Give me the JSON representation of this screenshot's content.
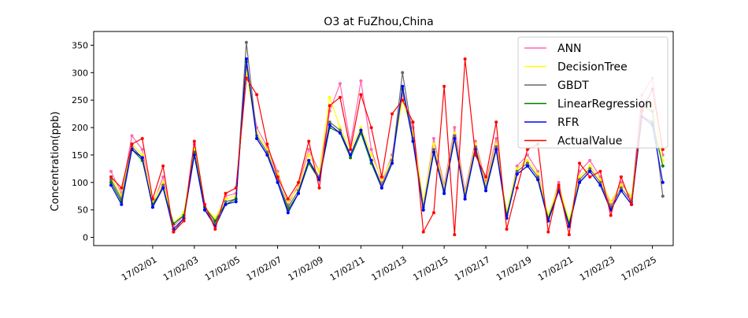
{
  "chart_data": {
    "type": "line",
    "title": "O3 at FuZhou,China",
    "xlabel": "",
    "ylabel": "Concentration(ppb)",
    "x_unit": "days",
    "xlim": [
      "2017-01-29T04:00",
      "2017-02-26T00:00"
    ],
    "ylim": [
      -15,
      375
    ],
    "yticks": [
      0,
      50,
      100,
      150,
      200,
      250,
      300,
      350
    ],
    "xticks": [
      "17/02/01",
      "17/02/03",
      "17/02/05",
      "17/02/07",
      "17/02/09",
      "17/02/11",
      "17/02/13",
      "17/02/15",
      "17/02/17",
      "17/02/19",
      "17/02/21",
      "17/02/23",
      "17/02/25"
    ],
    "legend_position": "top-right",
    "grid": false,
    "x": [
      "2017-01-30T00:00",
      "2017-01-30T12:00",
      "2017-01-31T00:00",
      "2017-01-31T12:00",
      "2017-02-01T00:00",
      "2017-02-01T12:00",
      "2017-02-02T00:00",
      "2017-02-02T12:00",
      "2017-02-03T00:00",
      "2017-02-03T12:00",
      "2017-02-04T00:00",
      "2017-02-04T12:00",
      "2017-02-05T00:00",
      "2017-02-05T12:00",
      "2017-02-06T00:00",
      "2017-02-06T12:00",
      "2017-02-07T00:00",
      "2017-02-07T12:00",
      "2017-02-08T00:00",
      "2017-02-08T12:00",
      "2017-02-09T00:00",
      "2017-02-09T12:00",
      "2017-02-10T00:00",
      "2017-02-10T12:00",
      "2017-02-11T00:00",
      "2017-02-11T12:00",
      "2017-02-12T00:00",
      "2017-02-12T12:00",
      "2017-02-13T00:00",
      "2017-02-13T12:00",
      "2017-02-14T00:00",
      "2017-02-14T12:00",
      "2017-02-15T00:00",
      "2017-02-15T12:00",
      "2017-02-16T00:00",
      "2017-02-16T12:00",
      "2017-02-17T00:00",
      "2017-02-17T12:00",
      "2017-02-18T00:00",
      "2017-02-18T12:00",
      "2017-02-19T00:00",
      "2017-02-19T12:00",
      "2017-02-20T00:00",
      "2017-02-20T12:00",
      "2017-02-21T00:00",
      "2017-02-21T12:00",
      "2017-02-22T00:00",
      "2017-02-22T12:00",
      "2017-02-23T00:00",
      "2017-02-23T12:00",
      "2017-02-24T00:00",
      "2017-02-24T12:00",
      "2017-02-25T00:00",
      "2017-02-25T12:00"
    ],
    "series": [
      {
        "name": "ANN",
        "color": "#ff69b4",
        "values": [
          120,
          80,
          185,
          160,
          60,
          110,
          20,
          40,
          170,
          50,
          30,
          75,
          80,
          310,
          200,
          165,
          120,
          60,
          95,
          160,
          120,
          230,
          280,
          170,
          285,
          160,
          100,
          150,
          260,
          200,
          60,
          180,
          95,
          200,
          85,
          175,
          100,
          180,
          40,
          130,
          150,
          120,
          35,
          100,
          20,
          120,
          140,
          110,
          60,
          100,
          70,
          260,
          290,
          150
        ]
      },
      {
        "name": "DecisionTree",
        "color": "#ffff00",
        "values": [
          110,
          75,
          170,
          150,
          65,
          100,
          25,
          45,
          160,
          55,
          35,
          70,
          75,
          300,
          190,
          160,
          115,
          65,
          90,
          150,
          120,
          255,
          200,
          160,
          200,
          150,
          105,
          145,
          250,
          190,
          65,
          170,
          90,
          190,
          80,
          170,
          95,
          170,
          45,
          125,
          140,
          115,
          40,
          95,
          30,
          110,
          130,
          105,
          65,
          95,
          75,
          230,
          240,
          140
        ]
      },
      {
        "name": "GBDT",
        "color": "#696969",
        "values": [
          105,
          70,
          165,
          145,
          55,
          95,
          10,
          35,
          150,
          50,
          25,
          65,
          70,
          355,
          185,
          155,
          105,
          55,
          85,
          140,
          110,
          210,
          195,
          150,
          195,
          140,
          95,
          140,
          300,
          180,
          55,
          160,
          85,
          185,
          75,
          165,
          90,
          165,
          35,
          120,
          135,
          110,
          30,
          90,
          20,
          105,
          125,
          100,
          55,
          90,
          65,
          240,
          230,
          75
        ]
      },
      {
        "name": "LinearRegression",
        "color": "#008000",
        "values": [
          100,
          65,
          160,
          140,
          60,
          90,
          25,
          40,
          155,
          55,
          30,
          60,
          70,
          320,
          180,
          150,
          100,
          50,
          80,
          135,
          105,
          200,
          190,
          145,
          190,
          135,
          90,
          135,
          270,
          175,
          50,
          155,
          80,
          180,
          70,
          160,
          85,
          160,
          40,
          115,
          130,
          105,
          35,
          85,
          25,
          100,
          120,
          95,
          50,
          85,
          60,
          220,
          210,
          130
        ]
      },
      {
        "name": "RFR",
        "color": "#0000ff",
        "values": [
          95,
          60,
          160,
          145,
          55,
          90,
          15,
          35,
          150,
          50,
          20,
          60,
          65,
          325,
          180,
          150,
          100,
          45,
          80,
          140,
          105,
          205,
          190,
          150,
          195,
          140,
          90,
          135,
          275,
          175,
          50,
          155,
          80,
          180,
          70,
          160,
          85,
          160,
          35,
          115,
          130,
          105,
          30,
          85,
          20,
          100,
          120,
          95,
          50,
          85,
          60,
          220,
          205,
          100
        ]
      },
      {
        "name": "ActualValue",
        "color": "#ff0000",
        "values": [
          110,
          90,
          170,
          180,
          70,
          130,
          10,
          30,
          175,
          60,
          15,
          80,
          90,
          290,
          260,
          170,
          110,
          70,
          100,
          175,
          90,
          240,
          255,
          160,
          260,
          200,
          110,
          225,
          250,
          210,
          10,
          45,
          275,
          5,
          325,
          150,
          110,
          210,
          15,
          90,
          160,
          170,
          10,
          95,
          5,
          135,
          110,
          120,
          40,
          110,
          60,
          230,
          270,
          160
        ]
      }
    ]
  }
}
